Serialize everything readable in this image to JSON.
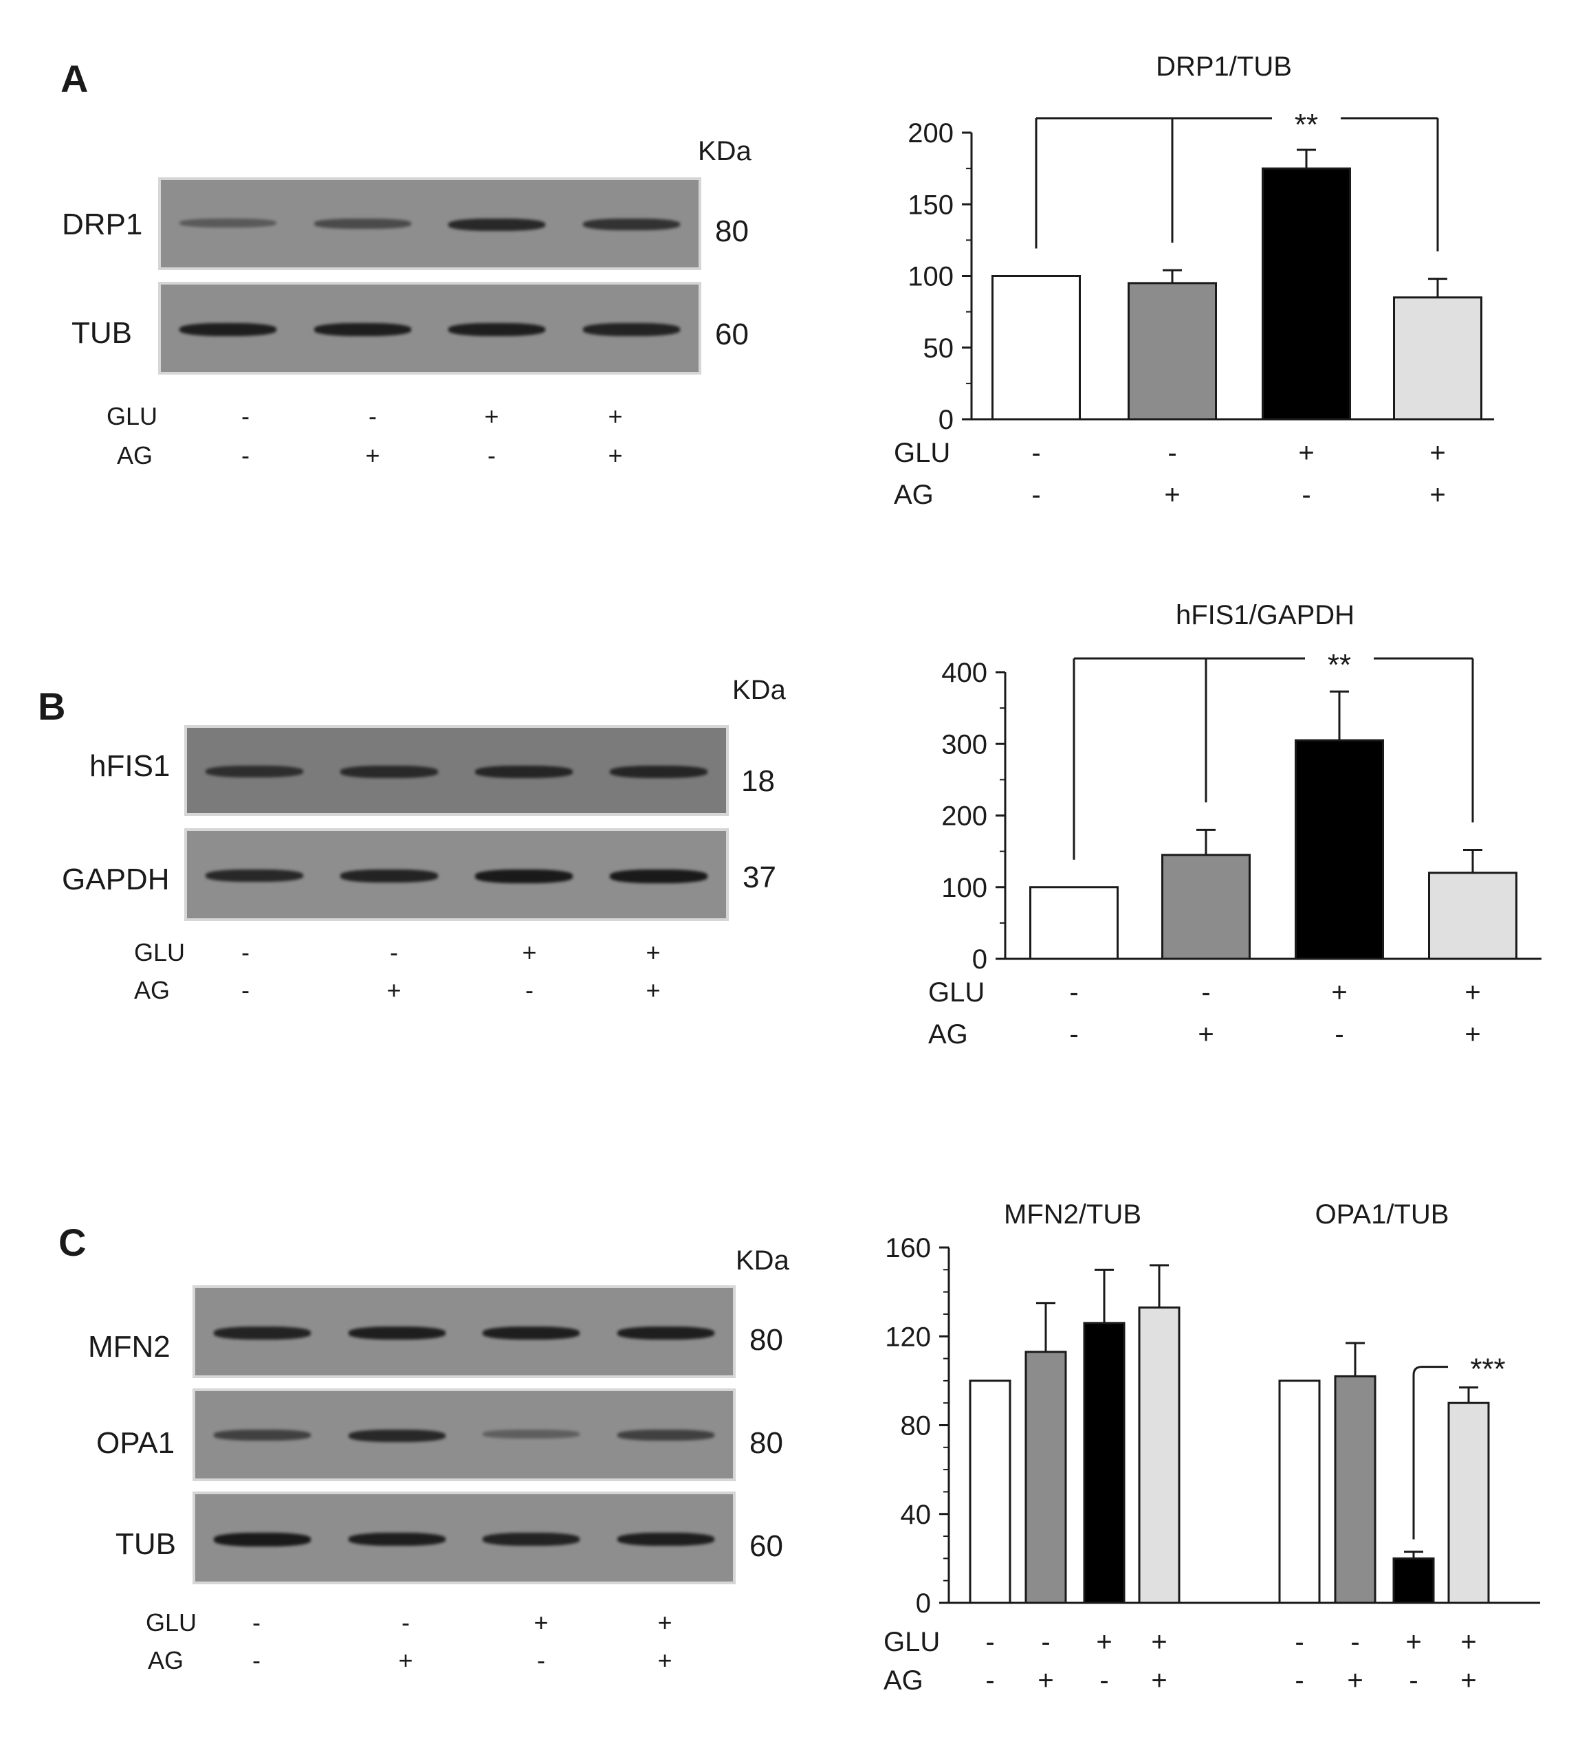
{
  "colors": {
    "ctrl": "#ffffff",
    "ag": "#8c8c8c",
    "glu": "#000000",
    "glu_ag": "#e0e0e0",
    "band": "#141414",
    "membrane": "#8e8e8e",
    "membrane_dark": "#7b7b7b"
  },
  "legend_signs": {
    "glu_label": "GLU",
    "ag_label": "AG",
    "glu": [
      "-",
      "-",
      "+",
      "+"
    ],
    "ag": [
      "-",
      "+",
      "-",
      "+"
    ]
  },
  "panels": [
    {
      "letter": "A",
      "kda_label": "KDa",
      "blots": [
        {
          "protein": "DRP1",
          "mw": "80",
          "band_intensity": [
            0.35,
            0.5,
            0.85,
            0.75
          ],
          "theme": "light"
        },
        {
          "protein": "TUB",
          "mw": "60",
          "band_intensity": [
            0.95,
            0.95,
            0.95,
            0.9
          ],
          "theme": "light"
        }
      ]
    },
    {
      "letter": "B",
      "kda_label": "KDa",
      "blots": [
        {
          "protein": "hFIS1",
          "mw": "18",
          "band_intensity": [
            0.75,
            0.8,
            0.85,
            0.85
          ],
          "theme": "dark"
        },
        {
          "protein": "GAPDH",
          "mw": "37",
          "band_intensity": [
            0.85,
            0.9,
            1.0,
            1.0
          ],
          "theme": "light"
        }
      ]
    },
    {
      "letter": "C",
      "kda_label": "KDa",
      "blots": [
        {
          "protein": "MFN2",
          "mw": "80",
          "band_intensity": [
            0.9,
            0.95,
            0.95,
            0.95
          ],
          "theme": "light"
        },
        {
          "protein": "OPA1",
          "mw": "80",
          "band_intensity": [
            0.6,
            0.85,
            0.3,
            0.6
          ],
          "theme": "light"
        },
        {
          "protein": "TUB",
          "mw": "60",
          "band_intensity": [
            1.0,
            0.95,
            0.9,
            0.95
          ],
          "theme": "light"
        }
      ]
    }
  ],
  "chart_data": [
    {
      "type": "bar",
      "title": "DRP1/TUB",
      "categories": [
        "-/-",
        "-/+",
        "+/-",
        "+/+"
      ],
      "values": [
        100,
        95,
        175,
        85
      ],
      "errors": [
        0,
        9,
        13,
        13
      ],
      "ylim": [
        0,
        200
      ],
      "yticks": [
        0,
        50,
        100,
        150,
        200
      ],
      "significance": "**",
      "xlabel": "",
      "ylabel": ""
    },
    {
      "type": "bar",
      "title": "hFIS1/GAPDH",
      "categories": [
        "-/-",
        "-/+",
        "+/-",
        "+/+"
      ],
      "values": [
        100,
        145,
        305,
        120
      ],
      "errors": [
        0,
        35,
        68,
        32
      ],
      "ylim": [
        0,
        400
      ],
      "yticks": [
        0,
        100,
        200,
        300,
        400
      ],
      "significance": "**",
      "xlabel": "",
      "ylabel": ""
    },
    {
      "type": "bar",
      "ylim": [
        0,
        160
      ],
      "yticks": [
        0,
        40,
        80,
        120,
        160
      ],
      "groups": [
        {
          "title": "MFN2/TUB",
          "categories": [
            "-/-",
            "-/+",
            "+/-",
            "+/+"
          ],
          "values": [
            100,
            113,
            126,
            133
          ],
          "errors": [
            0,
            22,
            24,
            19
          ]
        },
        {
          "title": "OPA1/TUB",
          "categories": [
            "-/-",
            "-/+",
            "+/-",
            "+/+"
          ],
          "values": [
            100,
            102,
            20,
            90
          ],
          "errors": [
            0,
            15,
            3,
            7
          ],
          "significance": "***"
        }
      ],
      "xlabel": "",
      "ylabel": ""
    }
  ]
}
